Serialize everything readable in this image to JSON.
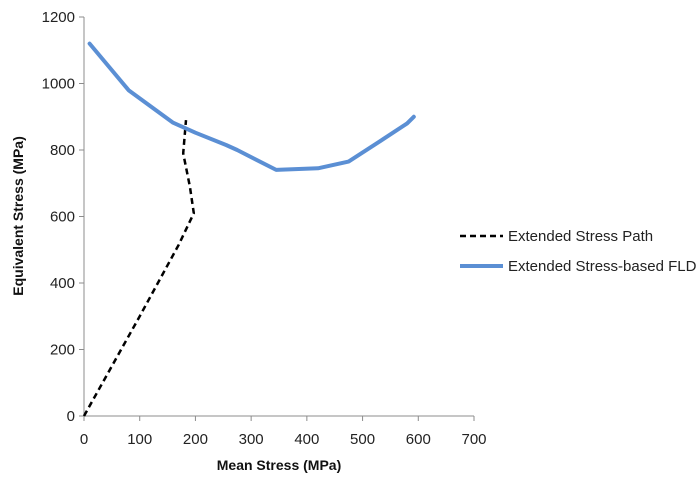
{
  "chart_data": {
    "type": "line",
    "title": "",
    "xlabel": "Mean Stress (MPa)",
    "ylabel": "Equivalent Stress (MPa)",
    "xlim": [
      0,
      700
    ],
    "ylim": [
      0,
      1200
    ],
    "xticks": [
      "0",
      "100",
      "200",
      "300",
      "400",
      "500",
      "600",
      "700"
    ],
    "yticks": [
      "0",
      "200",
      "400",
      "600",
      "800",
      "1000",
      "1200"
    ],
    "grid": false,
    "legend_position": "right",
    "series": [
      {
        "name": "Extended Stress Path",
        "style": "dashed",
        "color": "#000000",
        "x": [
          0,
          100,
          170,
          197,
          190,
          178,
          183
        ],
        "y": [
          0,
          300,
          515,
          610,
          690,
          790,
          890
        ]
      },
      {
        "name": "Extended Stress-based FLD",
        "style": "solid",
        "color": "#5b8fd4",
        "x": [
          10,
          80,
          160,
          200,
          255,
          275,
          345,
          420,
          475,
          530,
          580,
          592
        ],
        "y": [
          1120,
          980,
          882,
          852,
          815,
          800,
          740,
          745,
          765,
          825,
          880,
          900
        ]
      }
    ]
  }
}
